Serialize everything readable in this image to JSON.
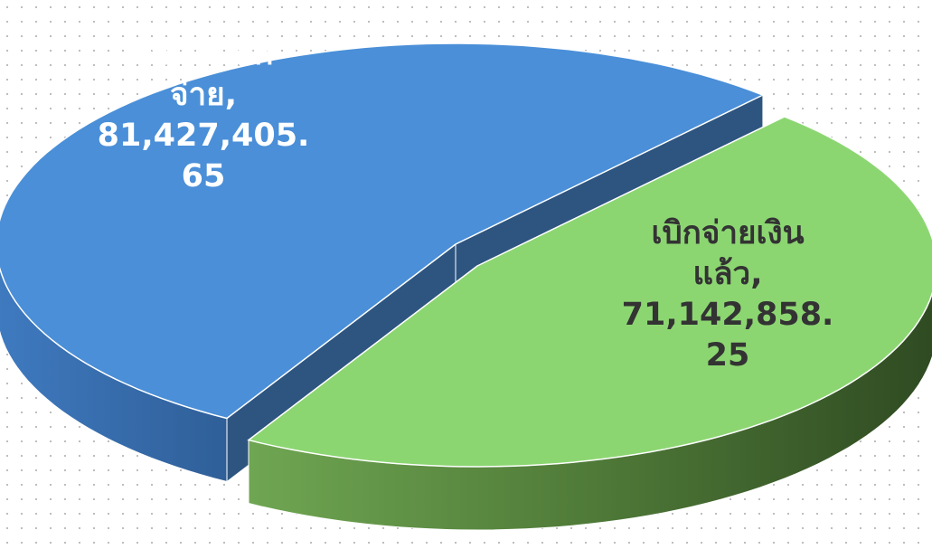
{
  "chart_data": {
    "type": "pie",
    "categories": [
      "รอการเบิกจ่าย",
      "เบิกจ่ายเงินแล้ว"
    ],
    "values": [
      81427405.65,
      71142858.25
    ],
    "value_labels": [
      "81,427,405.65",
      "71,142,858.25"
    ],
    "separator": ",",
    "colors": [
      "#4a8fd8",
      "#8cd672"
    ]
  }
}
